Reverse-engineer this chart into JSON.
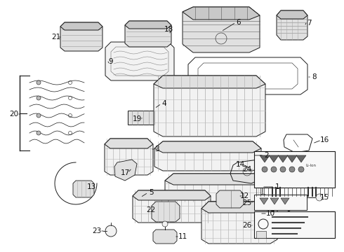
{
  "bg_color": "#ffffff",
  "fig_width": 4.9,
  "fig_height": 3.6,
  "dpi": 100,
  "line_color": "#1a1a1a",
  "fill_light": "#f2f2f2",
  "fill_mid": "#e0e0e0",
  "fill_dark": "#c8c8c8",
  "lw_main": 0.7,
  "lw_thin": 0.4,
  "lw_thick": 1.0,
  "label_fs": 7.5,
  "arrow_fs": 6.0
}
